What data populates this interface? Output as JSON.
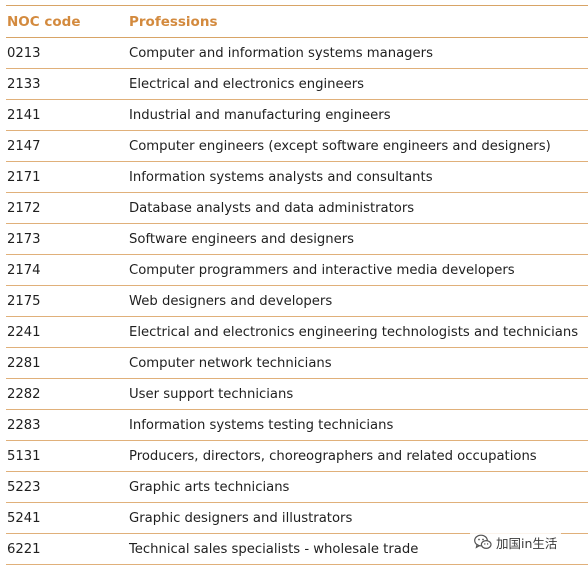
{
  "table": {
    "headers": [
      "NOC code",
      "Professions"
    ],
    "rows": [
      [
        "0213",
        "Computer and information systems managers"
      ],
      [
        "2133",
        "Electrical and electronics engineers"
      ],
      [
        "2141",
        "Industrial and manufacturing engineers"
      ],
      [
        "2147",
        "Computer engineers (except software engineers and designers)"
      ],
      [
        "2171",
        "Information systems analysts and consultants"
      ],
      [
        "2172",
        "Database analysts and data administrators"
      ],
      [
        "2173",
        "Software engineers and designers"
      ],
      [
        "2174",
        "Computer programmers and interactive media developers"
      ],
      [
        "2175",
        "Web designers and developers"
      ],
      [
        "2241",
        "Electrical and electronics engineering technologists and technicians"
      ],
      [
        "2281",
        "Computer network technicians"
      ],
      [
        "2282",
        "User support technicians"
      ],
      [
        "2283",
        "Information systems testing technicians"
      ],
      [
        "5131",
        "Producers, directors, choreographers and related occupations"
      ],
      [
        "5223",
        "Graphic arts technicians"
      ],
      [
        "5241",
        "Graphic designers and illustrators"
      ],
      [
        "6221",
        "Technical sales specialists - wholesale trade"
      ]
    ]
  },
  "watermark": {
    "icon": "wechat-icon",
    "text": "加国in生活"
  },
  "colors": {
    "header_text": "#d38a3e",
    "rule": "#e0b07a",
    "body_text": "#1f1f1f"
  }
}
